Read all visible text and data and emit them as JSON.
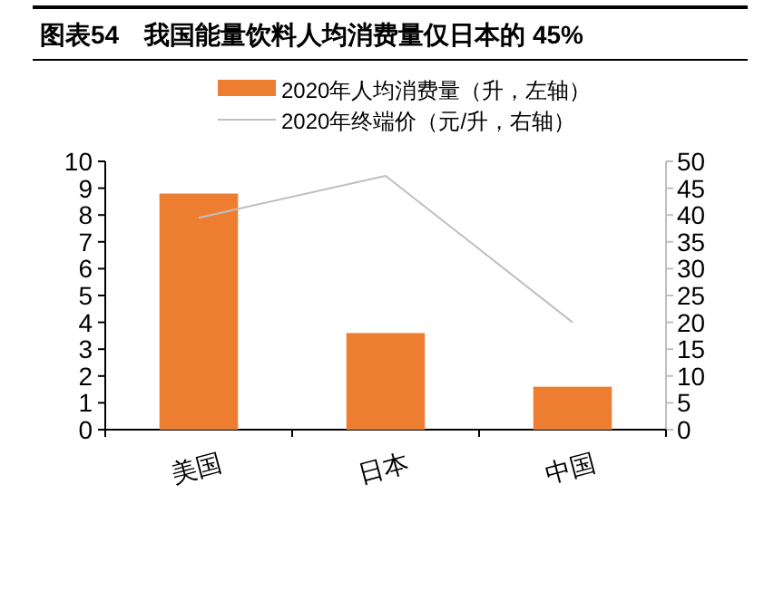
{
  "chart_data": {
    "type": "bar",
    "title": "图表54　我国能量饮料人均消费量仅日本的 45%",
    "categories": [
      "美国",
      "日本",
      "中国"
    ],
    "series": [
      {
        "name": "2020年人均消费量（升，左轴）",
        "color": "#ed7d31",
        "values": [
          8.8,
          3.6,
          1.6
        ]
      },
      {
        "name": "2020年终端价（元/升，右轴）",
        "type": "line",
        "axis": "y2",
        "color": "#bfbfbf",
        "values": [
          39.5,
          47.3,
          20
        ]
      }
    ],
    "ylim": [
      0,
      10
    ],
    "yticks": [
      0,
      1,
      2,
      3,
      4,
      5,
      6,
      7,
      8,
      9,
      10
    ],
    "y2lim": [
      0,
      50
    ],
    "y2ticks": [
      0,
      5,
      10,
      15,
      20,
      25,
      30,
      35,
      40,
      45,
      50
    ],
    "legend": "top",
    "grid": false
  }
}
